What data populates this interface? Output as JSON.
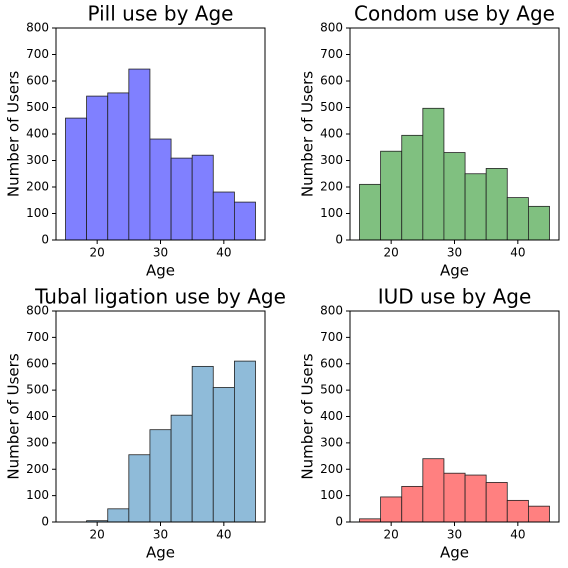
{
  "chart_data": [
    {
      "type": "histogram",
      "title": "Pill use by Age",
      "xlabel": "Age",
      "ylabel": "Number of Users",
      "color": "#8080ff",
      "bins": [
        15,
        18.33,
        21.67,
        25,
        28.33,
        31.67,
        35,
        38.33,
        41.67,
        45
      ],
      "values": [
        460,
        543,
        555,
        645,
        381,
        309,
        320,
        181,
        143
      ],
      "xlim": [
        13.5,
        46.5
      ],
      "xticks": [
        20,
        30,
        40
      ],
      "ylim": [
        0,
        800
      ],
      "yticks": [
        0,
        100,
        200,
        300,
        400,
        500,
        600,
        700,
        800
      ]
    },
    {
      "type": "histogram",
      "title": "Condom use by Age",
      "xlabel": "Age",
      "ylabel": "Number of Users",
      "color": "#80c080",
      "bins": [
        15,
        18.33,
        21.67,
        25,
        28.33,
        31.67,
        35,
        38.33,
        41.67,
        45
      ],
      "values": [
        210,
        335,
        395,
        497,
        330,
        250,
        270,
        160,
        127
      ],
      "xlim": [
        13.5,
        46.5
      ],
      "xticks": [
        20,
        30,
        40
      ],
      "ylim": [
        0,
        800
      ],
      "yticks": [
        0,
        100,
        200,
        300,
        400,
        500,
        600,
        700,
        800
      ]
    },
    {
      "type": "histogram",
      "title": "Tubal ligation use by Age",
      "xlabel": "Age",
      "ylabel": "Number of Users",
      "color": "#8fbbd9",
      "bins": [
        15,
        18.33,
        21.67,
        25,
        28.33,
        31.67,
        35,
        38.33,
        41.67,
        45
      ],
      "values": [
        0,
        5,
        50,
        255,
        350,
        405,
        590,
        510,
        610
      ],
      "xlim": [
        13.5,
        46.5
      ],
      "xticks": [
        20,
        30,
        40
      ],
      "ylim": [
        0,
        800
      ],
      "yticks": [
        0,
        100,
        200,
        300,
        400,
        500,
        600,
        700,
        800
      ]
    },
    {
      "type": "histogram",
      "title": "IUD use by Age",
      "xlabel": "Age",
      "ylabel": "Number of Users",
      "color": "#ff8080",
      "bins": [
        15,
        18.33,
        21.67,
        25,
        28.33,
        31.67,
        35,
        38.33,
        41.67,
        45
      ],
      "values": [
        12,
        95,
        135,
        240,
        185,
        178,
        150,
        82,
        60
      ],
      "xlim": [
        13.5,
        46.5
      ],
      "xticks": [
        20,
        30,
        40
      ],
      "ylim": [
        0,
        800
      ],
      "yticks": [
        0,
        100,
        200,
        300,
        400,
        500,
        600,
        700,
        800
      ]
    }
  ]
}
